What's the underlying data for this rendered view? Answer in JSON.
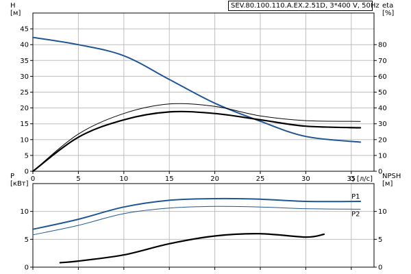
{
  "model": "SEV.80.100.110.A.EX.2.51D, 3*400 V, 50Hz",
  "colors": {
    "blue": "#1f5593",
    "black": "#000000",
    "grid": "#bdbdbd"
  },
  "chart_data": [
    {
      "type": "line",
      "name": "top",
      "xlim": [
        0,
        37.5
      ],
      "xticks": [
        0,
        5,
        10,
        15,
        20,
        25,
        30,
        35
      ],
      "xlabel": "Q [л/с]",
      "ylim_left": [
        0,
        50
      ],
      "yticks_left": [
        0,
        5,
        10,
        15,
        20,
        25,
        30,
        35,
        40,
        45
      ],
      "ylabel_left": [
        "H",
        "[м]"
      ],
      "ylim_right": [
        0,
        100
      ],
      "yticks_right": [
        0,
        10,
        20,
        30,
        40,
        50,
        60,
        70,
        80
      ],
      "ylabel_right": [
        "eta",
        "[%]"
      ],
      "grid": true,
      "series": [
        {
          "axis": "left",
          "color": "#1f5593",
          "width": 2,
          "x": [
            0,
            5,
            10,
            15,
            20,
            25,
            30,
            36
          ],
          "y": [
            42.3,
            40.0,
            36.5,
            29.0,
            21.5,
            15.8,
            11.0,
            9.2
          ]
        },
        {
          "axis": "right",
          "color": "#000000",
          "width": 2.2,
          "x": [
            0,
            5,
            10,
            15,
            20,
            25,
            30,
            36
          ],
          "y": [
            0,
            21.5,
            32.5,
            37.5,
            36.5,
            32.5,
            28.5,
            27.5
          ]
        },
        {
          "axis": "right",
          "color": "#000000",
          "width": 1,
          "x": [
            0,
            5,
            10,
            15,
            20,
            25,
            30,
            36
          ],
          "y": [
            0,
            23.5,
            36.5,
            42.5,
            41.0,
            35.0,
            32.0,
            31.5
          ]
        }
      ]
    },
    {
      "type": "line",
      "name": "bottom",
      "xlim": [
        0,
        37.5
      ],
      "xticks": [
        0,
        5,
        10,
        15,
        20,
        25,
        30,
        35
      ],
      "ylim_left": [
        0,
        15
      ],
      "yticks_left": [
        0,
        5,
        10
      ],
      "ylabel_left": [
        "P",
        "[кВт]"
      ],
      "ylim_right": [
        0,
        15
      ],
      "yticks_right": [
        0,
        5,
        10
      ],
      "ylabel_right": [
        "NPSH",
        "[м]"
      ],
      "grid": true,
      "series": [
        {
          "axis": "left",
          "label": "P1",
          "color": "#1f5593",
          "width": 2,
          "x": [
            0,
            5,
            10,
            15,
            20,
            25,
            30,
            36
          ],
          "y": [
            6.8,
            8.6,
            10.8,
            12.0,
            12.3,
            12.2,
            11.8,
            11.8
          ]
        },
        {
          "axis": "left",
          "label": "P2",
          "color": "#1f5593",
          "width": 1,
          "x": [
            0,
            5,
            10,
            15,
            20,
            25,
            30,
            36
          ],
          "y": [
            5.8,
            7.5,
            9.6,
            10.6,
            10.9,
            10.8,
            10.5,
            10.4
          ]
        },
        {
          "axis": "right",
          "color": "#000000",
          "width": 2.2,
          "x": [
            3,
            5,
            10,
            15,
            20,
            25,
            30,
            32
          ],
          "y": [
            0.8,
            1.1,
            2.2,
            4.2,
            5.6,
            6.0,
            5.4,
            5.9
          ]
        }
      ]
    }
  ]
}
